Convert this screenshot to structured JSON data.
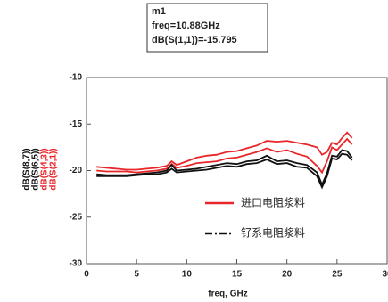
{
  "chart_data": {
    "type": "line",
    "annotation": [
      "m1",
      "freq=10.88GHz",
      "dB(S(1,1))=-15.795"
    ],
    "x_label": "freq, GHz",
    "x": [
      1,
      2,
      3,
      4,
      5,
      6,
      7,
      8,
      8.5,
      9,
      10,
      11,
      12,
      13,
      14,
      15,
      16,
      17,
      18,
      19,
      20,
      21,
      22,
      23,
      23.5,
      24,
      24.5,
      25,
      25.5,
      26,
      26.5
    ],
    "series": [
      {
        "name": "dB(S(2,1))",
        "color": "#e8262a",
        "values": [
          -19.6,
          -19.7,
          -19.8,
          -19.9,
          -19.9,
          -19.8,
          -19.7,
          -19.5,
          -19.0,
          -19.4,
          -19.0,
          -18.6,
          -18.4,
          -18.3,
          -18.0,
          -17.9,
          -17.6,
          -17.3,
          -16.8,
          -16.9,
          -16.8,
          -17.0,
          -17.2,
          -17.5,
          -18.3,
          -18.0,
          -17.0,
          -17.2,
          -16.5,
          -15.9,
          -16.5
        ]
      },
      {
        "name": "dB(S(4,3))",
        "color": "#e8262a",
        "values": [
          -20.0,
          -20.1,
          -20.1,
          -20.1,
          -20.2,
          -20.1,
          -20.0,
          -19.8,
          -19.3,
          -19.7,
          -19.5,
          -19.2,
          -19.1,
          -19.0,
          -18.7,
          -18.6,
          -18.3,
          -18.0,
          -17.6,
          -18.0,
          -17.8,
          -18.2,
          -18.5,
          -19.5,
          -20.2,
          -19.0,
          -17.5,
          -17.8,
          -17.2,
          -16.6,
          -17.2
        ]
      },
      {
        "name": "dB(S(6,5))",
        "color": "#111111",
        "values": [
          -20.4,
          -20.5,
          -20.5,
          -20.5,
          -20.4,
          -20.3,
          -20.2,
          -20.0,
          -19.4,
          -20.0,
          -19.9,
          -19.8,
          -19.6,
          -19.4,
          -19.2,
          -19.3,
          -19.0,
          -18.9,
          -18.4,
          -19.0,
          -18.9,
          -19.2,
          -19.4,
          -20.2,
          -21.5,
          -20.3,
          -18.4,
          -18.5,
          -17.8,
          -17.9,
          -18.6
        ]
      },
      {
        "name": "dB(S(8,7))",
        "color": "#111111",
        "values": [
          -20.6,
          -20.6,
          -20.6,
          -20.6,
          -20.5,
          -20.4,
          -20.4,
          -20.2,
          -19.8,
          -20.2,
          -20.1,
          -20.0,
          -19.9,
          -19.7,
          -19.5,
          -19.6,
          -19.3,
          -19.2,
          -18.8,
          -19.3,
          -19.2,
          -19.6,
          -19.7,
          -20.6,
          -21.8,
          -20.6,
          -18.7,
          -18.8,
          -18.2,
          -18.3,
          -18.9
        ]
      }
    ],
    "legend": [
      {
        "label": "进口电阻浆料",
        "color": "#e8262a",
        "dash": "solid"
      },
      {
        "label": "钌系电阻浆料",
        "color": "#111111",
        "dash": "dashdot"
      }
    ],
    "xlim": [
      0,
      30
    ],
    "xticks": [
      0,
      5,
      10,
      15,
      20,
      25,
      30
    ],
    "ylim": [
      -30,
      -10
    ],
    "yticks": [
      -30,
      -25,
      -20,
      -15,
      -10
    ]
  }
}
